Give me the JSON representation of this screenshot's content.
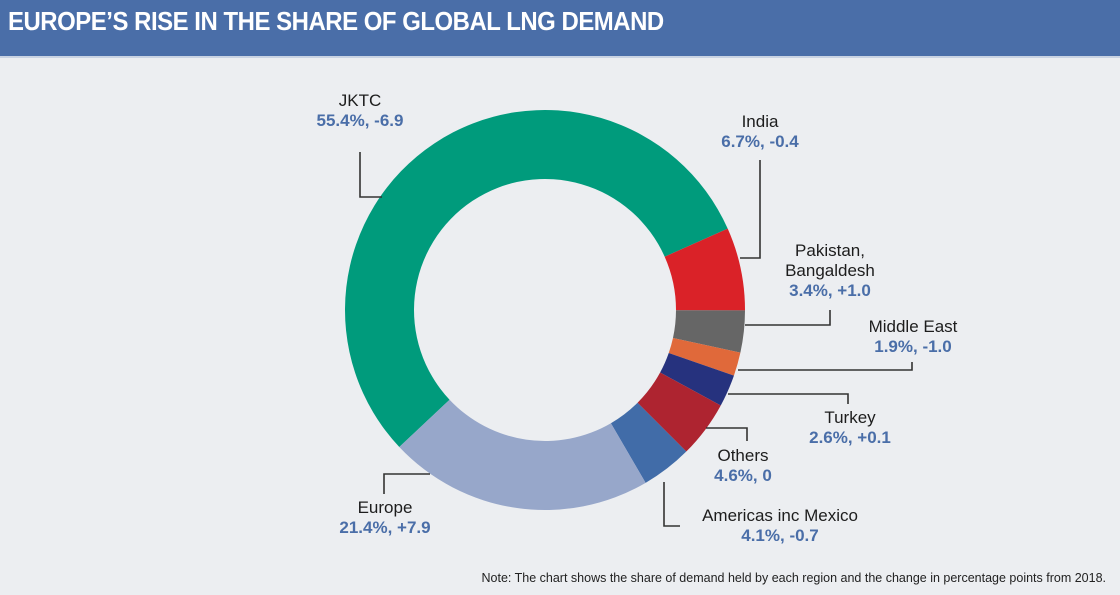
{
  "header": {
    "title": "EUROPE’S RISE IN THE SHARE OF GLOBAL LNG DEMAND"
  },
  "chart_data": {
    "type": "pie",
    "variant": "donut",
    "title": "EUROPE’S RISE IN THE SHARE OF GLOBAL LNG DEMAND",
    "unit": "% share of global LNG demand; change in percentage points from 2018",
    "slices": [
      {
        "name": "JKTC",
        "share": 55.4,
        "change": -6.9,
        "value_label": "55.4%, -6.9",
        "color": "#009b7c"
      },
      {
        "name": "India",
        "share": 6.7,
        "change": -0.4,
        "value_label": "6.7%, -0.4",
        "color": "#da2228"
      },
      {
        "name": "Pakistan, Bangaldesh",
        "share": 3.4,
        "change": 1.0,
        "value_label": "3.4%, +1.0",
        "color": "#666666"
      },
      {
        "name": "Middle East",
        "share": 1.9,
        "change": -1.0,
        "value_label": "1.9%, -1.0",
        "color": "#e0693a"
      },
      {
        "name": "Turkey",
        "share": 2.6,
        "change": 0.1,
        "value_label": "2.6%, +0.1",
        "color": "#26327e"
      },
      {
        "name": "Others",
        "share": 4.6,
        "change": 0,
        "value_label": "4.6%, 0",
        "color": "#ae2430"
      },
      {
        "name": "Americas inc Mexico",
        "share": 4.1,
        "change": -0.7,
        "value_label": "4.1%, -0.7",
        "color": "#416ca8"
      },
      {
        "name": "Europe",
        "share": 21.4,
        "change": 7.9,
        "value_label": "21.4%, +7.9",
        "color": "#97a7ca"
      }
    ],
    "note": "Note: The chart shows the share of demand held by each region and the change in percentage points from 2018."
  }
}
